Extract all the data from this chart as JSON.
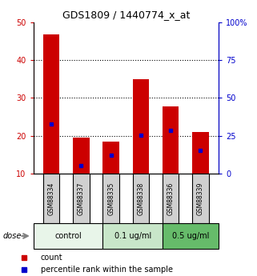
{
  "title": "GDS1809 / 1440774_x_at",
  "categories": [
    "GSM88334",
    "GSM88337",
    "GSM88335",
    "GSM88338",
    "GSM88336",
    "GSM88339"
  ],
  "red_values": [
    46.8,
    19.5,
    18.5,
    35.0,
    27.8,
    21.0
  ],
  "blue_values": [
    23.2,
    12.2,
    15.0,
    20.2,
    21.5,
    16.2
  ],
  "ylim_left": [
    10,
    50
  ],
  "ylim_right": [
    0,
    100
  ],
  "yticks_left": [
    10,
    20,
    30,
    40,
    50
  ],
  "ytick_labels_right": [
    "0",
    "25",
    "50",
    "75",
    "100%"
  ],
  "red_color": "#cc0000",
  "blue_color": "#0000cc",
  "bar_width": 0.55,
  "dose_groups": [
    {
      "label": "control",
      "color": "#e8f5e9",
      "spans": [
        0,
        2
      ]
    },
    {
      "label": "0.1 ug/ml",
      "color": "#c8e6c9",
      "spans": [
        2,
        4
      ]
    },
    {
      "label": "0.5 ug/ml",
      "color": "#66bb6a",
      "spans": [
        4,
        6
      ]
    }
  ],
  "sample_box_color": "#d0d0d0",
  "left_tick_color": "#cc0000",
  "right_tick_color": "#0000cc"
}
